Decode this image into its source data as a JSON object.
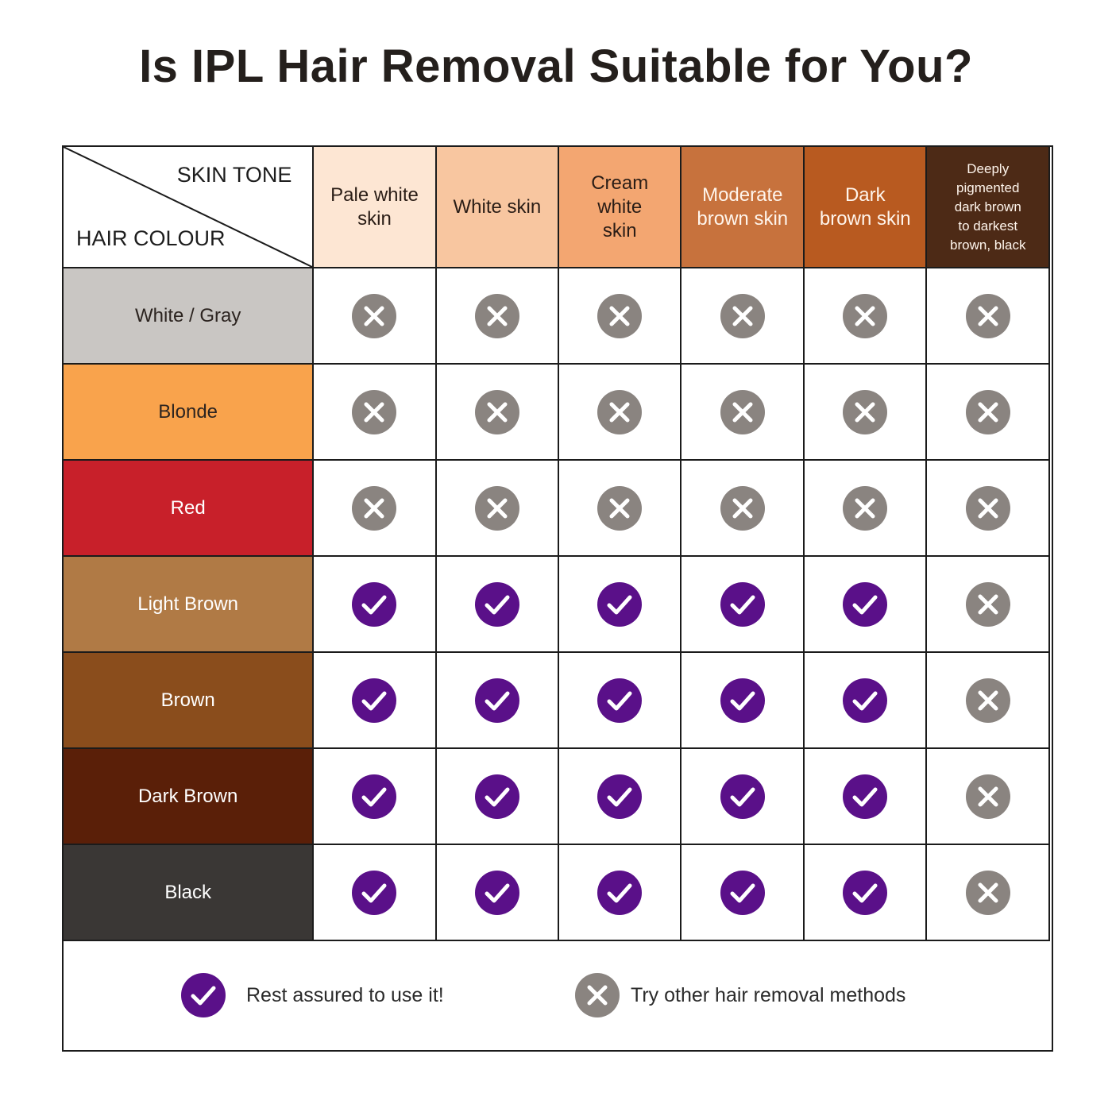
{
  "title": "Is IPL Hair Removal Suitable for You?",
  "corner": {
    "skin_label": "SKIN TONE",
    "hair_label": "HAIR COLOUR"
  },
  "colors": {
    "check": "#5a1089",
    "cross": "#8a8480",
    "check_mark": "#ffffff"
  },
  "skin_tones": [
    {
      "lines": [
        "Pale white",
        "skin"
      ],
      "bg": "#fde6d3"
    },
    {
      "lines": [
        "White skin"
      ],
      "bg": "#f8c6a0"
    },
    {
      "lines": [
        "Cream",
        "white",
        "skin"
      ],
      "bg": "#f3a671"
    },
    {
      "lines": [
        "Moderate",
        "brown skin"
      ],
      "bg": "#c7723d"
    },
    {
      "lines": [
        "Dark",
        "brown skin"
      ],
      "bg": "#b85a20"
    },
    {
      "lines": [
        "Deeply",
        "pigmented",
        "dark brown",
        "to darkest",
        "brown, black"
      ],
      "bg": "#4d2a16"
    }
  ],
  "hair_colours": [
    {
      "label": "White / Gray",
      "bg": "#c9c6c3",
      "marks": [
        "cross",
        "cross",
        "cross",
        "cross",
        "cross",
        "cross"
      ]
    },
    {
      "label": "Blonde",
      "bg": "#f9a34c",
      "marks": [
        "cross",
        "cross",
        "cross",
        "cross",
        "cross",
        "cross"
      ]
    },
    {
      "label": "Red",
      "bg": "#c8202a",
      "marks": [
        "cross",
        "cross",
        "cross",
        "cross",
        "cross",
        "cross"
      ]
    },
    {
      "label": "Light Brown",
      "bg": "#b07a45",
      "marks": [
        "check",
        "check",
        "check",
        "check",
        "check",
        "cross"
      ]
    },
    {
      "label": "Brown",
      "bg": "#8a4d1c",
      "marks": [
        "check",
        "check",
        "check",
        "check",
        "check",
        "cross"
      ]
    },
    {
      "label": "Dark Brown",
      "bg": "#5a1f08",
      "marks": [
        "check",
        "check",
        "check",
        "check",
        "check",
        "cross"
      ]
    },
    {
      "label": "Black",
      "bg": "#3a3735",
      "marks": [
        "check",
        "check",
        "check",
        "check",
        "check",
        "cross"
      ]
    }
  ],
  "legend": {
    "check_text": "Rest assured to use it!",
    "cross_text": "Try other hair removal methods"
  }
}
